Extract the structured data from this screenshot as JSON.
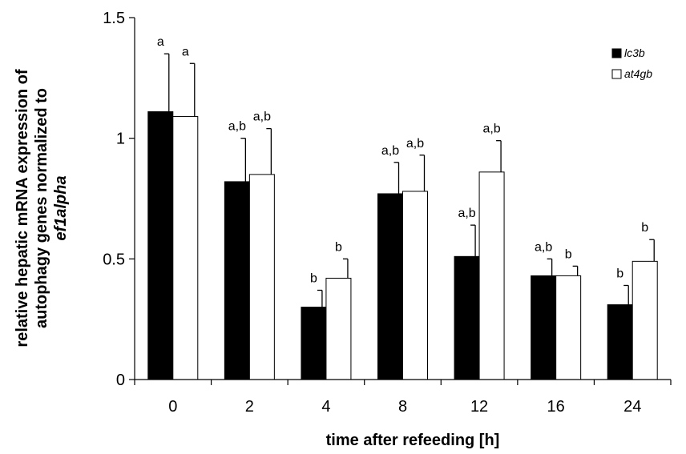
{
  "chart_data": {
    "type": "bar",
    "categories": [
      "0",
      "2",
      "4",
      "8",
      "12",
      "16",
      "24"
    ],
    "series": [
      {
        "name": "lc3b",
        "color": "#000000",
        "values": [
          1.11,
          0.82,
          0.3,
          0.77,
          0.51,
          0.43,
          0.31
        ],
        "errors": [
          0.24,
          0.18,
          0.07,
          0.13,
          0.13,
          0.07,
          0.08
        ],
        "labels": [
          "a",
          "a,b",
          "b",
          "a,b",
          "a,b",
          "a,b",
          "b"
        ]
      },
      {
        "name": "at4gb",
        "color": "#ffffff",
        "values": [
          1.09,
          0.85,
          0.42,
          0.78,
          0.86,
          0.43,
          0.49
        ],
        "errors": [
          0.22,
          0.19,
          0.08,
          0.15,
          0.13,
          0.04,
          0.09
        ],
        "labels": [
          "a",
          "a,b",
          "b",
          "a,b",
          "a,b",
          "b",
          "b"
        ]
      }
    ],
    "xlabel": "time after refeeding [h]",
    "ylabel_lines": [
      "relative hepatic mRNA expression of",
      "autophagy genes normalized to",
      "ef1alpha"
    ],
    "ylim": [
      0,
      1.5
    ],
    "yticks": [
      {
        "value": 0,
        "label": "0"
      },
      {
        "value": 0.5,
        "label": "0.5"
      },
      {
        "value": 1,
        "label": "1"
      },
      {
        "value": 1.5,
        "label": "1.5"
      }
    ],
    "grid": false,
    "legend_position": "top-right"
  }
}
